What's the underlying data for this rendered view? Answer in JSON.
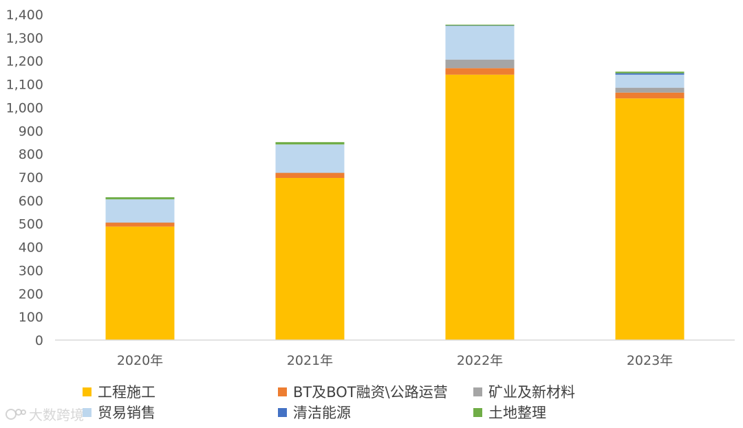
{
  "chart_data": {
    "type": "bar",
    "stacked": true,
    "categories": [
      "2020年",
      "2021年",
      "2022年",
      "2023年"
    ],
    "ylim": [
      0,
      1400
    ],
    "yticks": [
      "0",
      "100",
      "200",
      "300",
      "400",
      "500",
      "600",
      "700",
      "800",
      "900",
      "1,000",
      "1,100",
      "1,200",
      "1,300",
      "1,400"
    ],
    "grid": false,
    "legend_position": "bottom",
    "series": [
      {
        "name": "工程施工",
        "color": "#FFC000",
        "values": [
          488,
          697,
          1141,
          1039
        ]
      },
      {
        "name": "BT及BOT融资\\公路运营",
        "color": "#ED7D31",
        "values": [
          17,
          22,
          28,
          25
        ]
      },
      {
        "name": "矿业及新材料",
        "color": "#A5A5A5",
        "values": [
          1,
          1,
          37,
          21
        ]
      },
      {
        "name": "贸易销售",
        "color": "#BDD7EE",
        "values": [
          99,
          121,
          145,
          56
        ]
      },
      {
        "name": "清洁能源",
        "color": "#4472C4",
        "values": [
          0,
          0,
          1,
          6
        ]
      },
      {
        "name": "土地整理",
        "color": "#70AD47",
        "values": [
          9,
          10,
          4,
          7
        ]
      }
    ]
  },
  "watermark": {
    "text": "大数跨境"
  }
}
